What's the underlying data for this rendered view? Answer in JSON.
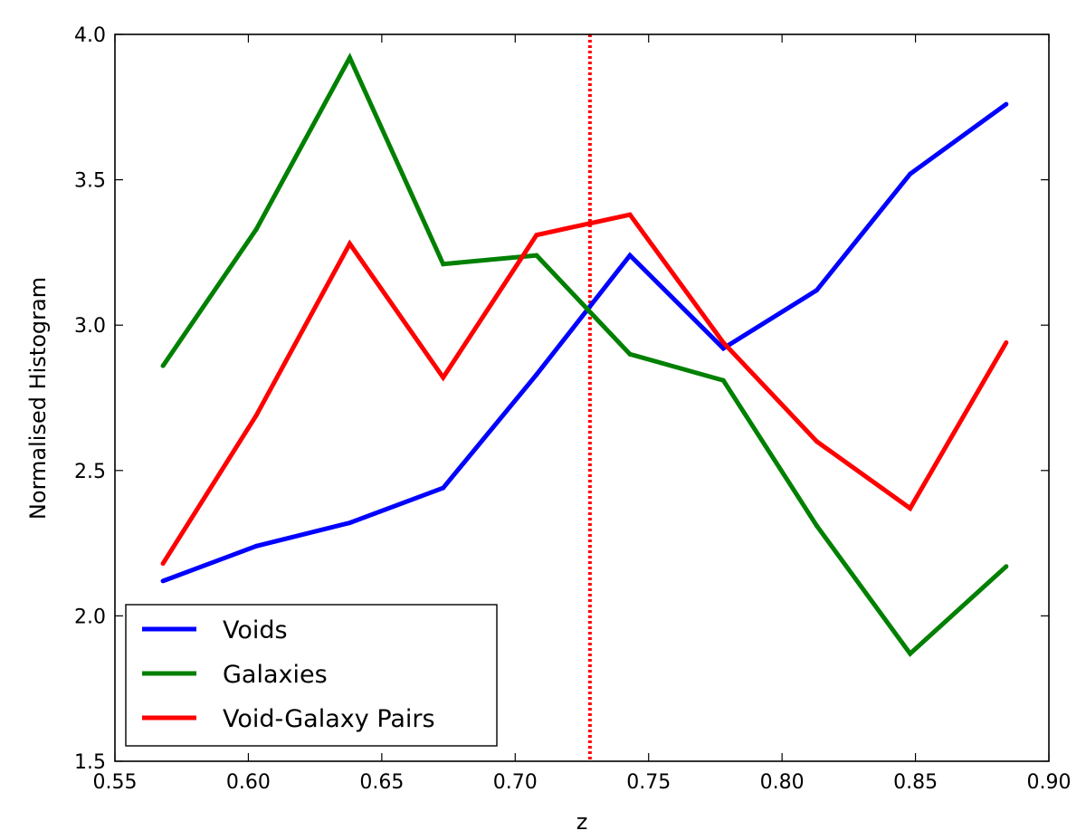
{
  "chart_data": {
    "type": "line",
    "xlabel": "z",
    "ylabel": "Normalised Histogram",
    "xlim": [
      0.55,
      0.9
    ],
    "ylim": [
      1.5,
      4.0
    ],
    "xticks": [
      "0.55",
      "0.60",
      "0.65",
      "0.70",
      "0.75",
      "0.80",
      "0.85",
      "0.90"
    ],
    "yticks": [
      "1.5",
      "2.0",
      "2.5",
      "3.0",
      "3.5",
      "4.0"
    ],
    "grid": false,
    "legend_position": "lower-left",
    "x": [
      0.568,
      0.603,
      0.638,
      0.673,
      0.708,
      0.743,
      0.778,
      0.813,
      0.848,
      0.884
    ],
    "series": [
      {
        "name": "Voids",
        "color": "#0000ff",
        "values": [
          2.12,
          2.24,
          2.32,
          2.44,
          2.83,
          3.24,
          2.92,
          3.12,
          3.52,
          3.76
        ]
      },
      {
        "name": "Galaxies",
        "color": "#008000",
        "values": [
          2.86,
          3.33,
          3.92,
          3.21,
          3.24,
          2.9,
          2.81,
          2.31,
          1.87,
          2.17
        ]
      },
      {
        "name": "Void-Galaxy Pairs",
        "color": "#ff0000",
        "values": [
          2.18,
          2.69,
          3.28,
          2.82,
          3.31,
          3.38,
          2.94,
          2.6,
          2.37,
          2.94
        ]
      }
    ],
    "reference_line": {
      "x": 0.728,
      "style": "dotted",
      "color": "#ff0000"
    }
  }
}
